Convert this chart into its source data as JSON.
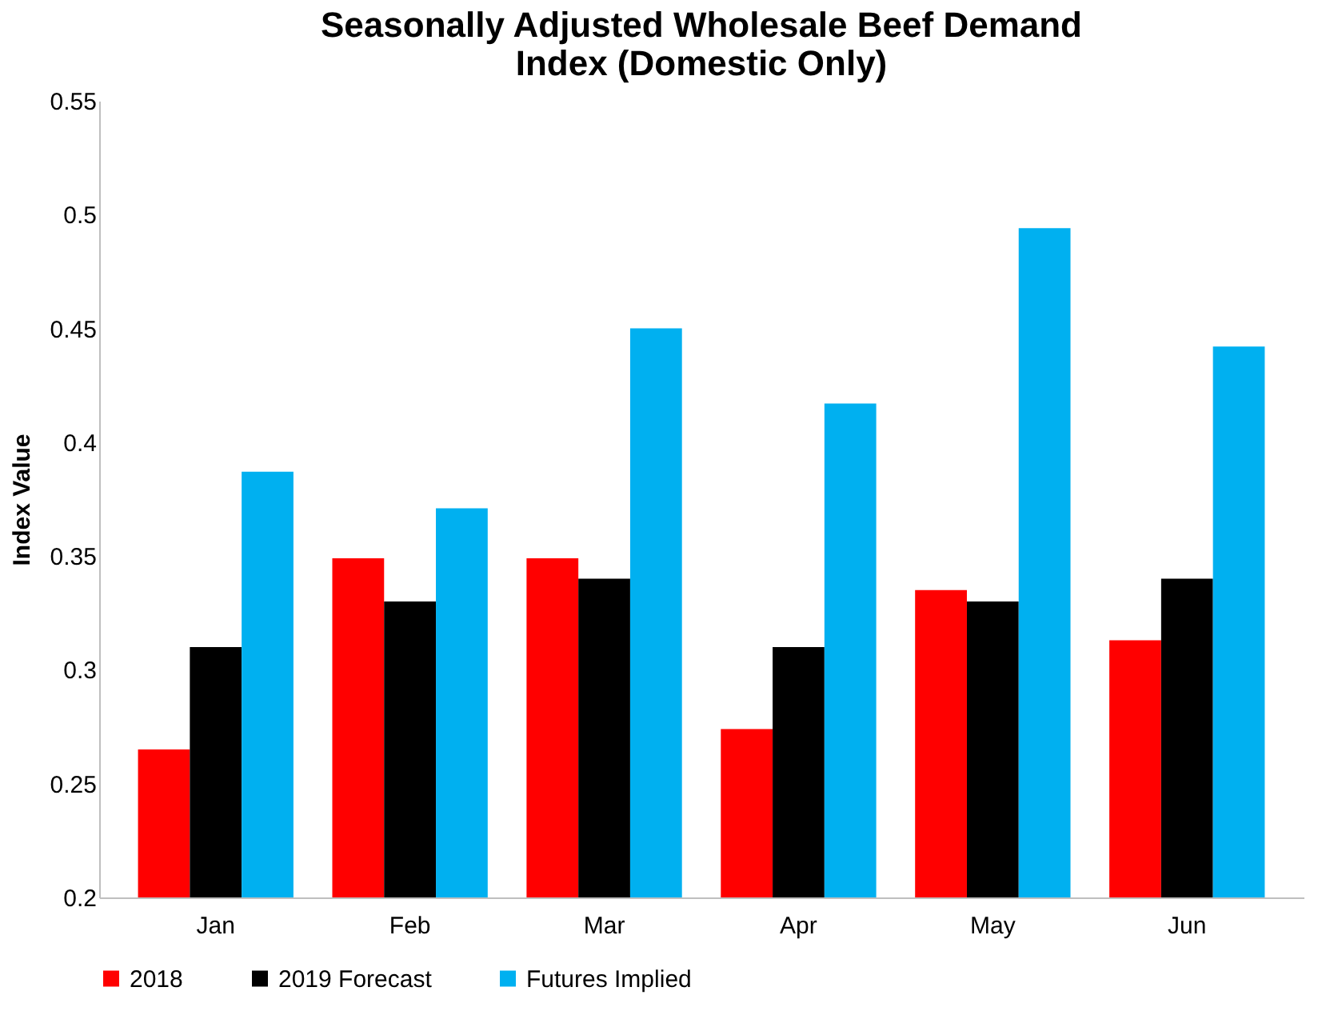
{
  "chart_data": {
    "type": "bar",
    "title": "Seasonally Adjusted Wholesale Beef Demand Index (Domestic Only)",
    "ylabel": "Index Value",
    "categories": [
      "Jan",
      "Feb",
      "Mar",
      "Apr",
      "May",
      "Jun"
    ],
    "series": [
      {
        "name": "2018",
        "color": "#ff0000",
        "values": [
          0.265,
          0.349,
          0.349,
          0.274,
          0.335,
          0.313
        ]
      },
      {
        "name": "2019 Forecast",
        "color": "#000000",
        "values": [
          0.31,
          0.33,
          0.34,
          0.31,
          0.33,
          0.34
        ]
      },
      {
        "name": "Futures Implied",
        "color": "#00b0f0",
        "values": [
          0.387,
          0.371,
          0.45,
          0.417,
          0.494,
          0.442
        ]
      }
    ],
    "ylim": [
      0.2,
      0.55
    ],
    "yticks": [
      0.2,
      0.25,
      0.3,
      0.35,
      0.4,
      0.45,
      0.5,
      0.55
    ],
    "grid": false,
    "legend": "bottom"
  }
}
